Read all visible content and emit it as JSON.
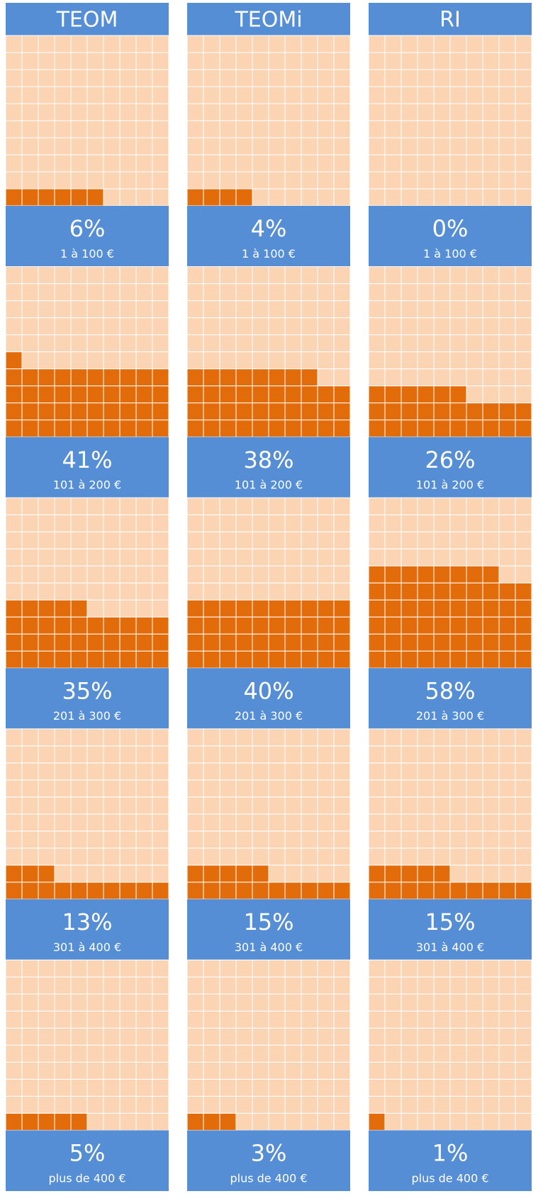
{
  "chart_data": {
    "type": "waffle",
    "categories": [
      "1 à 100 €",
      "101 à 200 €",
      "201 à 300 €",
      "301 à 400 €",
      "plus de 400 €"
    ],
    "series": [
      {
        "name": "TEOM",
        "color": "#e36c0a",
        "values": [
          6,
          41,
          35,
          13,
          5
        ],
        "value_labels": [
          "6%",
          "41%",
          "35%",
          "13%",
          "5%"
        ]
      },
      {
        "name": "TEOMi",
        "color": "#e36c0a",
        "values": [
          4,
          38,
          40,
          15,
          3
        ],
        "value_labels": [
          "4%",
          "38%",
          "40%",
          "15%",
          "3%"
        ]
      },
      {
        "name": "RI",
        "color": "#e36c0a",
        "values": [
          0,
          26,
          58,
          15,
          1
        ],
        "value_labels": [
          "0%",
          "26%",
          "58%",
          "15%",
          "1%"
        ]
      }
    ]
  }
}
